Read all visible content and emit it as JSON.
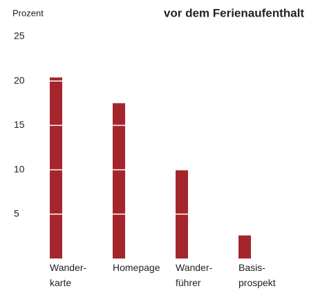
{
  "chart_data": {
    "type": "bar",
    "title": "vor dem Ferienaufenthalt",
    "y_label": "Prozent",
    "categories": [
      "Wander-\nkarte",
      "Homepage",
      "Wander-\nführer",
      "Basis-\nprospekt"
    ],
    "values": [
      20.4,
      17.5,
      10,
      2.6
    ],
    "color": "#a5252c",
    "ylim": [
      0,
      25
    ],
    "yticks": [
      5,
      10,
      15,
      20,
      25
    ],
    "grid": true,
    "grid_color": "#ffffff"
  }
}
